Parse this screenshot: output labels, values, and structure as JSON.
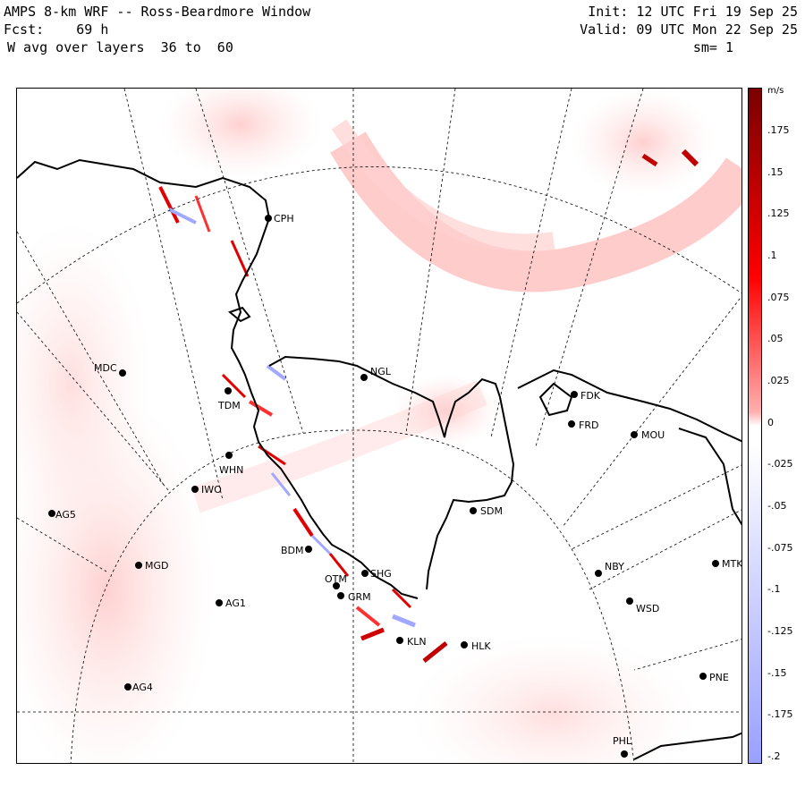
{
  "header": {
    "title": "AMPS 8-km WRF -- Ross-Beardmore Window",
    "forecast_label": "Fcst:",
    "forecast_value": "69 h",
    "field": "W avg over layers  36 to  60",
    "init": "Init: 12 UTC Fri 19 Sep 25",
    "valid": "Valid: 09 UTC Mon 22 Sep 25",
    "smoothing": "sm= 1"
  },
  "colorbar": {
    "units": "m/s",
    "labels": [
      ".175",
      ".15",
      ".125",
      ".1",
      ".075",
      ".05",
      ".025",
      "0",
      "-.025",
      "-.05",
      "-.075",
      "-.1",
      "-.125",
      "-.15",
      "-.175",
      "-.2"
    ],
    "max_color": "#7a0000",
    "zero_color": "#ffffff",
    "min_color": "#9aa0ff"
  },
  "stations": [
    {
      "code": "CPH"
    },
    {
      "code": "MDC"
    },
    {
      "code": "NGL"
    },
    {
      "code": "TDM"
    },
    {
      "code": "FDK"
    },
    {
      "code": "FRD"
    },
    {
      "code": "MOU"
    },
    {
      "code": "WHN"
    },
    {
      "code": "IWO"
    },
    {
      "code": "AG5"
    },
    {
      "code": "SDM"
    },
    {
      "code": "BDM"
    },
    {
      "code": "MGD"
    },
    {
      "code": "SHG"
    },
    {
      "code": "OTM"
    },
    {
      "code": "GRM"
    },
    {
      "code": "NBY"
    },
    {
      "code": "MTK"
    },
    {
      "code": "AG1"
    },
    {
      "code": "WSD"
    },
    {
      "code": "KLN"
    },
    {
      "code": "HLK"
    },
    {
      "code": "PNE"
    },
    {
      "code": "AG4"
    },
    {
      "code": "PHL"
    }
  ]
}
